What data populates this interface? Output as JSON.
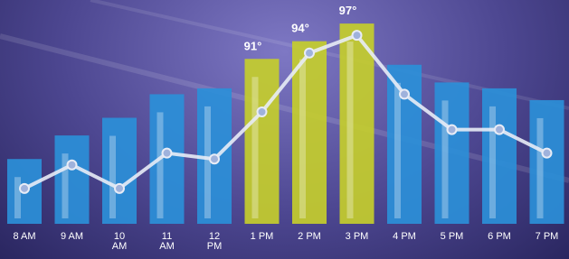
{
  "chart_data": {
    "type": "bar-line",
    "categories": [
      "8 AM",
      "9 AM",
      "10 AM",
      "11 AM",
      "12 PM",
      "1 PM",
      "2 PM",
      "3 PM",
      "4 PM",
      "5 PM",
      "6 PM",
      "7 PM"
    ],
    "series": [
      {
        "type": "bar",
        "values": [
          74,
          78,
          81,
          85,
          86,
          91,
          94,
          97,
          90,
          87,
          86,
          84
        ],
        "value_labels": [
          null,
          null,
          null,
          null,
          null,
          "91°",
          "94°",
          "97°",
          null,
          null,
          null,
          null
        ],
        "colors": [
          "#2b8fd8",
          "#2b8fd8",
          "#2b8fd8",
          "#2b8fd8",
          "#2b8fd8",
          "#c4cd2c",
          "#c4cd2c",
          "#c4cd2c",
          "#2b8fd8",
          "#2b8fd8",
          "#2b8fd8",
          "#2b8fd8"
        ]
      },
      {
        "type": "line",
        "color": "#e8ecf6",
        "values": [
          69,
          73,
          69,
          75,
          74,
          82,
          92,
          95,
          85,
          79,
          79,
          75
        ]
      }
    ],
    "ylim": [
      63,
      101
    ]
  }
}
